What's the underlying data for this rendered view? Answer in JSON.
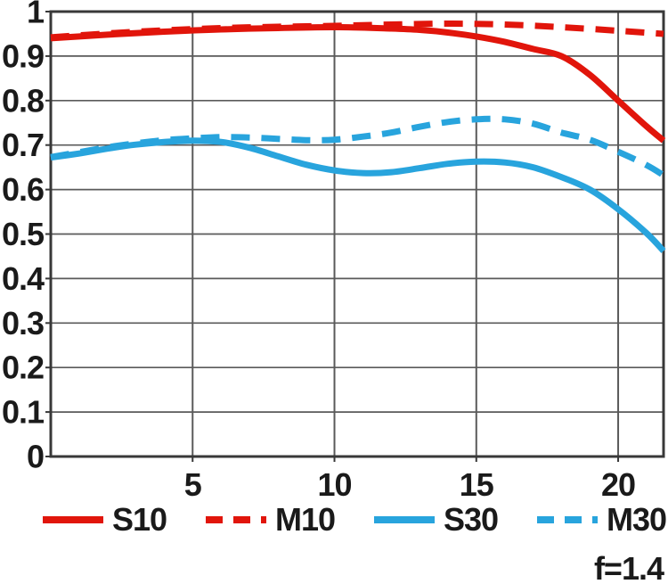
{
  "figure": {
    "aperture_label": "f=1.4"
  },
  "colors": {
    "red": "#e1150b",
    "blue": "#28a4dd",
    "grid": "#5a5a5a",
    "border": "#383838",
    "text": "#1a1a1a",
    "background": "#ffffff"
  },
  "chart_data": {
    "type": "line",
    "title": "",
    "xlabel": "",
    "ylabel": "",
    "xlim": [
      0,
      21.6
    ],
    "ylim": [
      0,
      1
    ],
    "x_ticks": [
      5,
      10,
      15,
      20
    ],
    "x_tick_labels": [
      "5",
      "10",
      "15",
      "20"
    ],
    "y_ticks": [
      0,
      0.1,
      0.2,
      0.3,
      0.4,
      0.5,
      0.6,
      0.7,
      0.8,
      0.9,
      1
    ],
    "y_tick_labels": [
      "0",
      "0.1",
      "0.2",
      "0.3",
      "0.4",
      "0.5",
      "0.6",
      "0.7",
      "0.8",
      "0.9",
      "1"
    ],
    "grid": true,
    "legend_position": "bottom",
    "annotation": "f=1.4",
    "series": [
      {
        "name": "S10",
        "color": "#e1150b",
        "style": "solid",
        "x": [
          0,
          2,
          4,
          6,
          8,
          10,
          12,
          13,
          14,
          15,
          16,
          17,
          18,
          19,
          20,
          21,
          21.6
        ],
        "y": [
          0.94,
          0.948,
          0.955,
          0.96,
          0.963,
          0.965,
          0.962,
          0.959,
          0.953,
          0.944,
          0.932,
          0.916,
          0.9,
          0.858,
          0.8,
          0.742,
          0.71
        ]
      },
      {
        "name": "M10",
        "color": "#e1150b",
        "style": "dashed",
        "x": [
          0,
          2,
          4,
          6,
          8,
          10,
          12,
          14,
          16,
          18,
          20,
          21.6
        ],
        "y": [
          0.942,
          0.951,
          0.958,
          0.963,
          0.966,
          0.968,
          0.971,
          0.973,
          0.971,
          0.965,
          0.957,
          0.95
        ]
      },
      {
        "name": "S30",
        "color": "#28a4dd",
        "style": "solid",
        "x": [
          0,
          1,
          2,
          3,
          4,
          5,
          6,
          7,
          8,
          9,
          10,
          11,
          12,
          13,
          14,
          15,
          16,
          17,
          18,
          19,
          20,
          21,
          21.6
        ],
        "y": [
          0.672,
          0.681,
          0.692,
          0.701,
          0.707,
          0.71,
          0.707,
          0.694,
          0.675,
          0.656,
          0.643,
          0.637,
          0.639,
          0.648,
          0.658,
          0.663,
          0.661,
          0.65,
          0.628,
          0.6,
          0.556,
          0.502,
          0.462
        ]
      },
      {
        "name": "M30",
        "color": "#28a4dd",
        "style": "dashed",
        "x": [
          0,
          1,
          2,
          3,
          4,
          5,
          6,
          7,
          8,
          9,
          10,
          11,
          12,
          13,
          14,
          15,
          16,
          17,
          18,
          19,
          20,
          21,
          21.6
        ],
        "y": [
          0.673,
          0.684,
          0.695,
          0.704,
          0.711,
          0.715,
          0.718,
          0.717,
          0.714,
          0.711,
          0.712,
          0.719,
          0.728,
          0.741,
          0.752,
          0.758,
          0.758,
          0.748,
          0.728,
          0.712,
          0.685,
          0.655,
          0.632
        ]
      }
    ]
  }
}
